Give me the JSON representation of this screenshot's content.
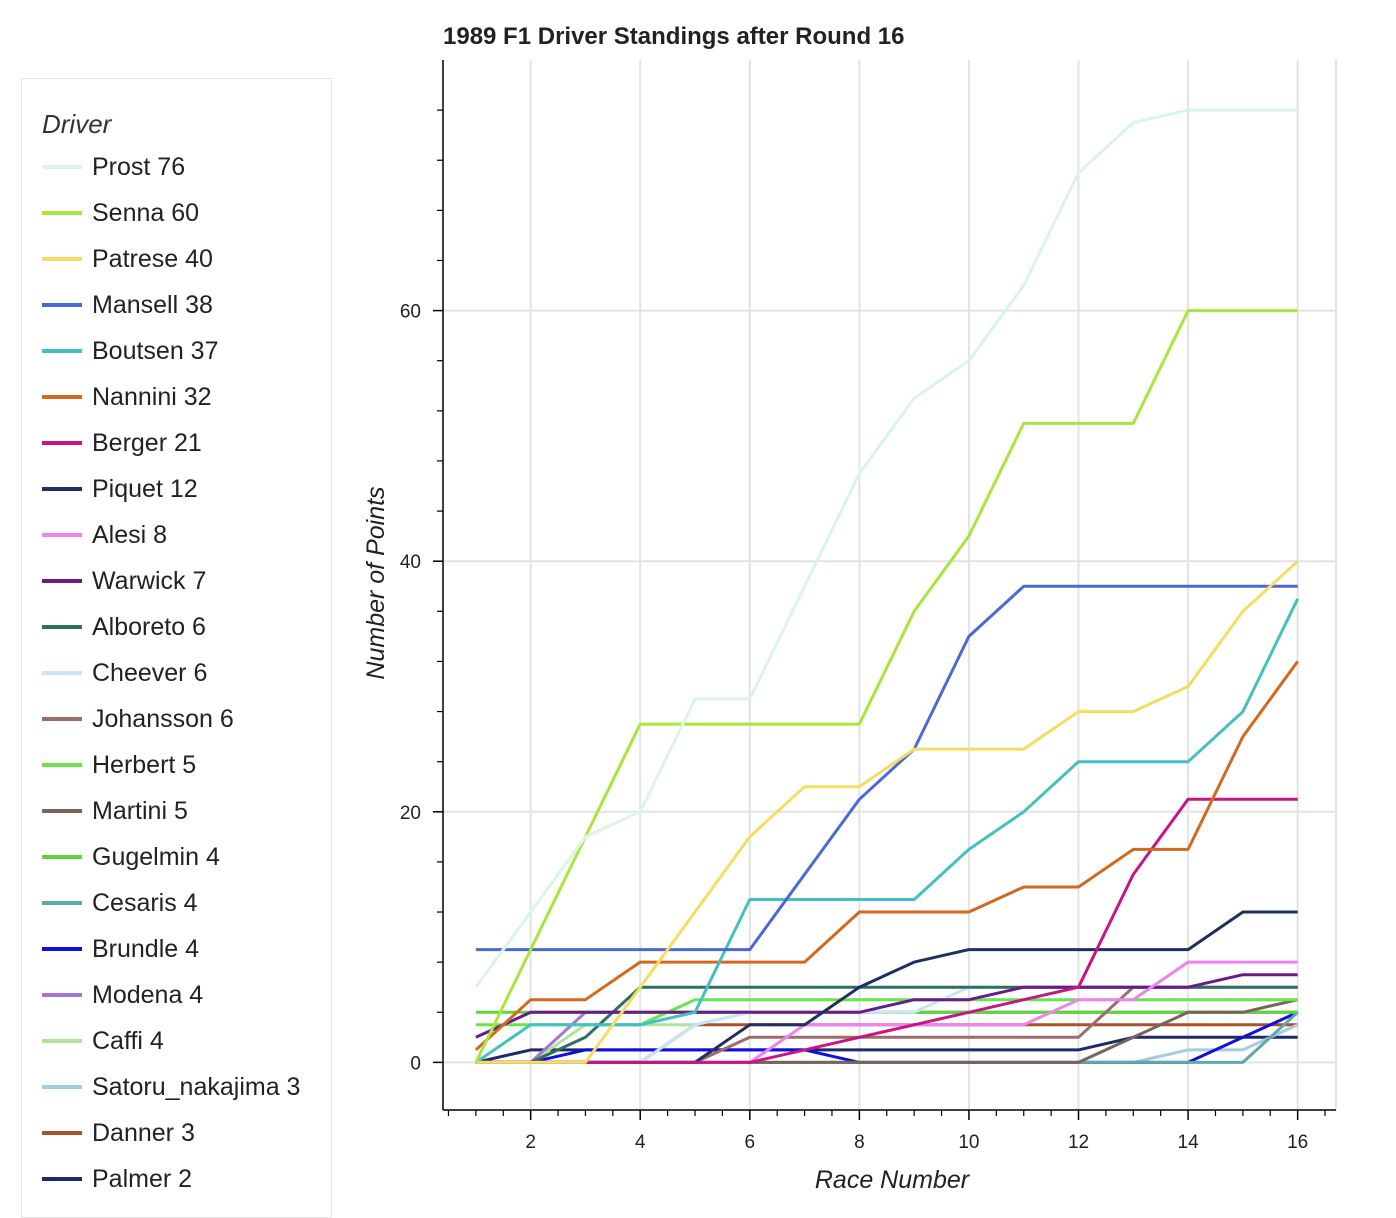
{
  "chart_data": {
    "type": "line",
    "title": "1989 F1 Driver Standings after Round 16",
    "xlabel": "Race Number",
    "ylabel": "Number of Points",
    "xlim": [
      0.4,
      16.7
    ],
    "ylim": [
      -3.8,
      80
    ],
    "xticks": [
      2,
      4,
      6,
      8,
      10,
      12,
      14,
      16
    ],
    "yticks": [
      0,
      20,
      40,
      60
    ],
    "grid": true,
    "legend_title": "Driver",
    "legend_position": "left",
    "x": [
      1,
      2,
      3,
      4,
      5,
      6,
      7,
      8,
      9,
      10,
      11,
      12,
      13,
      14,
      15,
      16
    ],
    "series": [
      {
        "name": "Prost 76",
        "color": "#d9f6e4",
        "values": [
          6,
          12,
          18,
          20,
          29,
          29,
          38,
          47,
          53,
          56,
          62,
          71,
          75,
          76,
          76,
          76
        ]
      },
      {
        "name": "Senna 60",
        "color": "#a8e63e",
        "values": [
          0,
          9,
          18,
          27,
          27,
          27,
          27,
          27,
          36,
          42,
          51,
          51,
          51,
          60,
          60,
          60
        ]
      },
      {
        "name": "Patrese 40",
        "color": "#f5dd60",
        "values": [
          0,
          0,
          0,
          6,
          12,
          18,
          22,
          22,
          25,
          25,
          25,
          28,
          28,
          30,
          36,
          40
        ]
      },
      {
        "name": "Mansell 38",
        "color": "#4c68d7",
        "values": [
          9,
          9,
          9,
          9,
          9,
          9,
          15,
          21,
          25,
          34,
          38,
          38,
          38,
          38,
          38,
          38
        ]
      },
      {
        "name": "Boutsen 37",
        "color": "#45c0c0",
        "values": [
          0,
          3,
          3,
          3,
          4,
          13,
          13,
          13,
          13,
          17,
          20,
          24,
          24,
          24,
          28,
          37
        ]
      },
      {
        "name": "Nannini 32",
        "color": "#d2691e",
        "values": [
          1,
          5,
          5,
          8,
          8,
          8,
          8,
          12,
          12,
          12,
          14,
          14,
          17,
          17,
          26,
          32
        ]
      },
      {
        "name": "Berger 21",
        "color": "#c71585",
        "values": [
          0,
          0,
          0,
          0,
          0,
          0,
          1,
          2,
          3,
          4,
          5,
          6,
          15,
          21,
          21,
          21
        ]
      },
      {
        "name": "Piquet 12",
        "color": "#1f2f5f",
        "values": [
          0,
          0,
          0,
          0,
          0,
          3,
          3,
          6,
          8,
          9,
          9,
          9,
          9,
          9,
          12,
          12
        ]
      },
      {
        "name": "Alesi 8",
        "color": "#ee82ee",
        "values": [
          0,
          0,
          0,
          0,
          0,
          0,
          3,
          3,
          3,
          3,
          3,
          5,
          5,
          8,
          8,
          8
        ]
      },
      {
        "name": "Warwick 7",
        "color": "#6a1b8a",
        "values": [
          2,
          4,
          4,
          4,
          4,
          4,
          4,
          4,
          5,
          5,
          6,
          6,
          6,
          6,
          7,
          7
        ]
      },
      {
        "name": "Alboreto 6",
        "color": "#2f6f62",
        "values": [
          0,
          0,
          2,
          6,
          6,
          6,
          6,
          6,
          6,
          6,
          6,
          6,
          6,
          6,
          6,
          6
        ]
      },
      {
        "name": "Cheever 6",
        "color": "#c6e6f3",
        "values": [
          0,
          0,
          0,
          0,
          3,
          4,
          4,
          4,
          4,
          6,
          6,
          6,
          6,
          6,
          6,
          6
        ]
      },
      {
        "name": "Johansson 6",
        "color": "#9c6b6b",
        "values": [
          0,
          0,
          0,
          0,
          0,
          2,
          2,
          2,
          2,
          2,
          2,
          2,
          6,
          6,
          6,
          6
        ]
      },
      {
        "name": "Herbert 5",
        "color": "#66e64a",
        "values": [
          3,
          3,
          3,
          3,
          5,
          5,
          5,
          5,
          5,
          5,
          5,
          5,
          5,
          5,
          5,
          5
        ]
      },
      {
        "name": "Martini 5",
        "color": "#7a6458",
        "values": [
          0,
          0,
          0,
          0,
          0,
          0,
          0,
          0,
          0,
          0,
          0,
          0,
          2,
          4,
          4,
          5
        ]
      },
      {
        "name": "Gugelmin 4",
        "color": "#5cd63a",
        "values": [
          4,
          4,
          4,
          4,
          4,
          4,
          4,
          4,
          4,
          4,
          4,
          4,
          4,
          4,
          4,
          4
        ]
      },
      {
        "name": "Cesaris 4",
        "color": "#5fa8ac",
        "values": [
          0,
          0,
          0,
          0,
          0,
          0,
          0,
          0,
          0,
          0,
          0,
          0,
          0,
          0,
          0,
          4
        ]
      },
      {
        "name": "Brundle 4",
        "color": "#1010dd",
        "values": [
          0,
          0,
          1,
          1,
          1,
          1,
          1,
          0,
          0,
          0,
          0,
          0,
          0,
          0,
          2,
          4
        ]
      },
      {
        "name": "Modena 4",
        "color": "#a775d6",
        "values": [
          0,
          0,
          4,
          4,
          4,
          4,
          4,
          4,
          4,
          4,
          4,
          4,
          4,
          4,
          4,
          4
        ]
      },
      {
        "name": "Caffi 4",
        "color": "#aee39a",
        "values": [
          0,
          0,
          3,
          3,
          3,
          4,
          4,
          4,
          4,
          4,
          4,
          4,
          4,
          4,
          4,
          4
        ]
      },
      {
        "name": "Satoru_nakajima 3",
        "color": "#a4cbe0",
        "values": [
          0,
          0,
          0,
          0,
          0,
          0,
          0,
          0,
          0,
          0,
          0,
          0,
          0,
          1,
          1,
          3
        ]
      },
      {
        "name": "Danner 3",
        "color": "#a8522a",
        "values": [
          0,
          0,
          0,
          0,
          3,
          3,
          3,
          3,
          3,
          3,
          3,
          3,
          3,
          3,
          3,
          3
        ]
      },
      {
        "name": "Palmer 2",
        "color": "#1c2a6b",
        "values": [
          0,
          1,
          1,
          1,
          1,
          1,
          1,
          1,
          1,
          1,
          1,
          1,
          2,
          2,
          2,
          2
        ]
      }
    ]
  }
}
